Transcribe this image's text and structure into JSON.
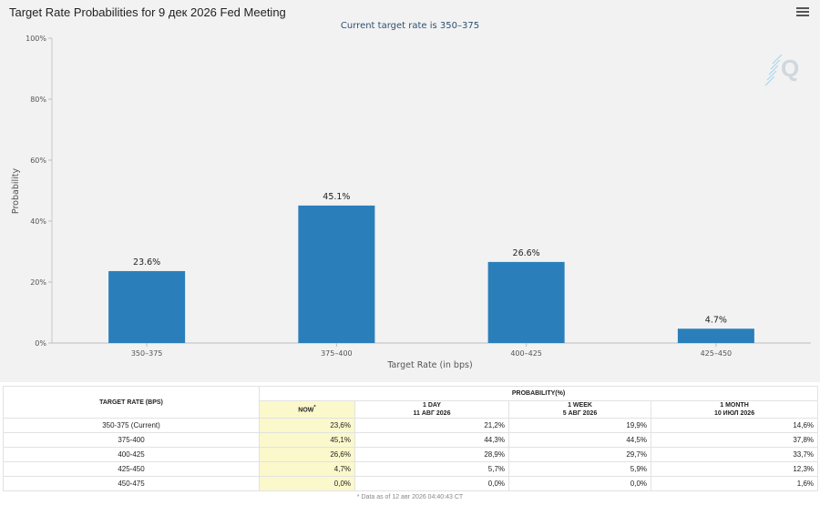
{
  "chart_data": {
    "type": "bar",
    "title": "Target Rate Probabilities for 9 дек 2026 Fed Meeting",
    "subtitle": "Current target rate is 350–375",
    "categories": [
      "350–375",
      "375–400",
      "400–425",
      "425–450"
    ],
    "values": [
      23.6,
      45.1,
      26.6,
      4.7
    ],
    "data_labels": [
      "23.6%",
      "45.1%",
      "26.6%",
      "4.7%"
    ],
    "yticks": [
      "0%",
      "20%",
      "40%",
      "60%",
      "80%",
      "100%"
    ],
    "ylim": [
      0,
      100
    ],
    "xlabel": "Target Rate (in bps)",
    "ylabel": "Probability",
    "grid": false,
    "bar_color": "#2a7fba"
  },
  "logo_text": "Q",
  "table": {
    "rate_header": "TARGET RATE (BPS)",
    "prob_header": "PROBABILITY(%)",
    "col_headers": [
      {
        "line1": "NOW",
        "line2": ""
      },
      {
        "line1": "1 DAY",
        "line2": "11 АВГ 2026"
      },
      {
        "line1": "1 WEEK",
        "line2": "5 АВГ 2026"
      },
      {
        "line1": "1 MONTH",
        "line2": "10 ИЮЛ 2026"
      }
    ],
    "now_marker": "*",
    "rows": [
      {
        "rate": "350-375 (Current)",
        "now": "23,6%",
        "day": "21,2%",
        "week": "19,9%",
        "month": "14,6%"
      },
      {
        "rate": "375-400",
        "now": "45,1%",
        "day": "44,3%",
        "week": "44,5%",
        "month": "37,8%"
      },
      {
        "rate": "400-425",
        "now": "26,6%",
        "day": "28,9%",
        "week": "29,7%",
        "month": "33,7%"
      },
      {
        "rate": "425-450",
        "now": "4,7%",
        "day": "5,7%",
        "week": "5,9%",
        "month": "12,3%"
      },
      {
        "rate": "450-475",
        "now": "0,0%",
        "day": "0,0%",
        "week": "0,0%",
        "month": "1,6%"
      }
    ],
    "note": "* Data as of 12 авг 2026 04:40:43 CT"
  }
}
